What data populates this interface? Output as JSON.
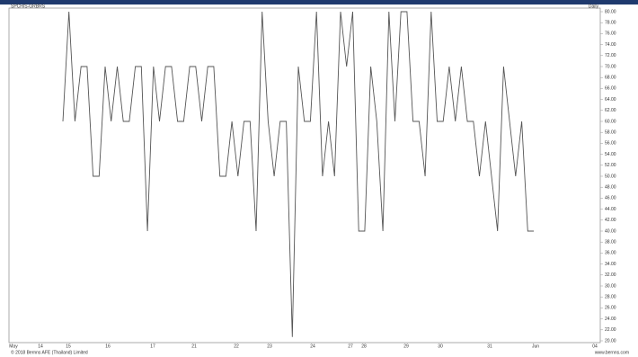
{
  "header": {
    "left": "SPCH/S-GRBRS",
    "right": "Daily"
  },
  "footer": {
    "left": "© 2018 Bernns AFE (Thailand) Limited",
    "right": "www.bernns.com"
  },
  "chart_data": {
    "type": "line",
    "color": "#555555",
    "x_axis_labels": [
      "May",
      "14",
      "15",
      "16",
      "17",
      "21",
      "22",
      "23",
      "24",
      "27",
      "28",
      "29",
      "30",
      "31",
      "Jun",
      "04"
    ],
    "values": [
      60,
      80,
      60,
      70,
      70,
      50,
      50,
      70,
      60,
      70,
      60,
      60,
      70,
      70,
      40,
      70,
      60,
      70,
      70,
      60,
      60,
      70,
      70,
      60,
      70,
      70,
      50,
      50,
      60,
      50,
      60,
      60,
      40,
      80,
      60,
      50,
      60,
      60,
      20.7,
      70,
      60,
      60,
      80,
      50,
      60,
      50,
      80,
      70,
      80,
      40,
      40,
      70,
      60,
      40,
      80,
      60,
      80,
      80,
      60,
      60,
      50,
      80,
      60,
      60,
      70,
      60,
      70,
      60,
      60,
      50,
      60,
      50,
      40,
      70,
      60,
      50,
      60,
      40,
      40
    ],
    "ylim": [
      20,
      80
    ],
    "yticks": [
      {
        "value": 20,
        "label": "20.00"
      },
      {
        "value": 22,
        "label": "22.00"
      },
      {
        "value": 24,
        "label": "24.00"
      },
      {
        "value": 26,
        "label": "26.00"
      },
      {
        "value": 28,
        "label": "28.00"
      },
      {
        "value": 30,
        "label": "30.00"
      },
      {
        "value": 32,
        "label": "32.00"
      },
      {
        "value": 34,
        "label": "34.00"
      },
      {
        "value": 36,
        "label": "36.00"
      },
      {
        "value": 38,
        "label": "38.00"
      },
      {
        "value": 40,
        "label": "40.00"
      },
      {
        "value": 42,
        "label": "42.00"
      },
      {
        "value": 44,
        "label": "44.00"
      },
      {
        "value": 46,
        "label": "46.00"
      },
      {
        "value": 48,
        "label": "48.00"
      },
      {
        "value": 50,
        "label": "50.00"
      },
      {
        "value": 52,
        "label": "52.00"
      },
      {
        "value": 54,
        "label": "54.00"
      },
      {
        "value": 56,
        "label": "56.00"
      },
      {
        "value": 58,
        "label": "58.00"
      },
      {
        "value": 60,
        "label": "60.00"
      },
      {
        "value": 62,
        "label": "62.00"
      },
      {
        "value": 64,
        "label": "64.00"
      },
      {
        "value": 66,
        "label": "66.00"
      },
      {
        "value": 68,
        "label": "68.00"
      },
      {
        "value": 70,
        "label": "70.00"
      },
      {
        "value": 72,
        "label": "72.00"
      },
      {
        "value": 74,
        "label": "74.00"
      },
      {
        "value": 76,
        "label": "76.00"
      },
      {
        "value": 78,
        "label": "78.00"
      },
      {
        "value": 80,
        "label": "80.00"
      }
    ]
  }
}
